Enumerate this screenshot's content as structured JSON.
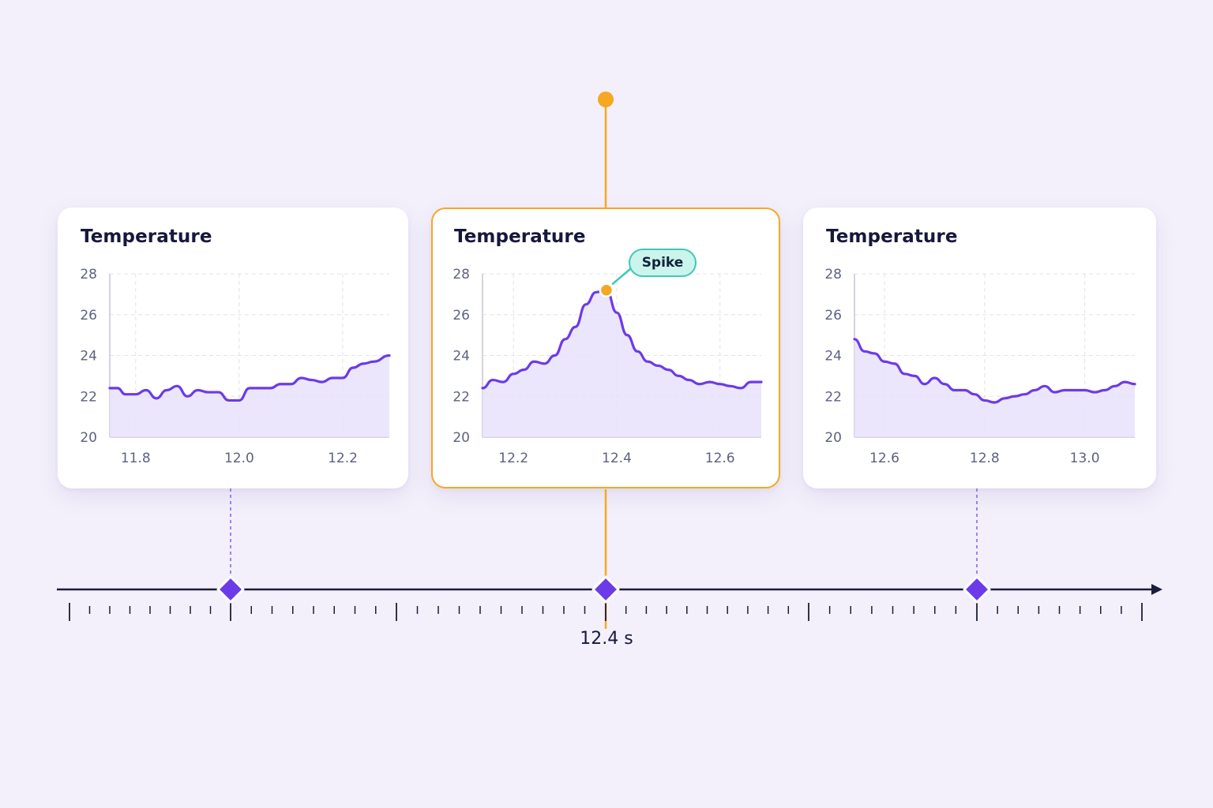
{
  "colors": {
    "background": "#f3f0fb",
    "line": "#6c3be8",
    "fill": "#e9e2fb",
    "highlight": "#f6a823",
    "marker": "#6c3be8",
    "callout_border": "#3ec9b6",
    "callout_fill": "#cbf4ec",
    "axis_text": "#5d6280",
    "timeline": "#1b1d3a"
  },
  "timeline": {
    "current_time_label": "12.4 s",
    "marker_icon": "diamond-marker"
  },
  "chart_data": [
    {
      "type": "area",
      "title": "Temperature",
      "xlabel": "",
      "ylabel": "",
      "ylim": [
        20,
        28
      ],
      "xlim": [
        11.75,
        12.29
      ],
      "yticks": [
        20,
        22,
        24,
        26,
        28
      ],
      "xticks": [
        11.8,
        12.0,
        12.2
      ],
      "xtick_labels": [
        "11.8",
        "12.0",
        "12.2"
      ],
      "grid": true,
      "series": [
        {
          "x": [
            11.75,
            11.765,
            11.78,
            11.8,
            11.82,
            11.84,
            11.86,
            11.88,
            11.9,
            11.92,
            11.94,
            11.96,
            11.98,
            12.0,
            12.02,
            12.04,
            12.06,
            12.08,
            12.1,
            12.12,
            12.14,
            12.16,
            12.18,
            12.2,
            12.22,
            12.24,
            12.26,
            12.29
          ],
          "y": [
            22.4,
            22.4,
            22.1,
            22.1,
            22.3,
            21.9,
            22.3,
            22.5,
            22.0,
            22.3,
            22.2,
            22.2,
            21.8,
            21.8,
            22.4,
            22.4,
            22.4,
            22.6,
            22.6,
            22.9,
            22.8,
            22.7,
            22.9,
            22.9,
            23.4,
            23.6,
            23.7,
            24.0
          ]
        }
      ]
    },
    {
      "type": "area",
      "title": "Temperature",
      "xlabel": "",
      "ylabel": "",
      "ylim": [
        20,
        28
      ],
      "xlim": [
        12.14,
        12.68
      ],
      "yticks": [
        20,
        22,
        24,
        26,
        28
      ],
      "xticks": [
        12.2,
        12.4,
        12.6
      ],
      "xtick_labels": [
        "12.2",
        "12.4",
        "12.6"
      ],
      "grid": true,
      "highlight_point": {
        "x": 12.38,
        "y": 27.2
      },
      "annotation": "Spike",
      "series": [
        {
          "x": [
            12.14,
            12.16,
            12.18,
            12.2,
            12.22,
            12.24,
            12.26,
            12.28,
            12.3,
            12.32,
            12.34,
            12.36,
            12.38,
            12.4,
            12.42,
            12.44,
            12.46,
            12.48,
            12.5,
            12.52,
            12.54,
            12.56,
            12.58,
            12.6,
            12.62,
            12.64,
            12.66,
            12.68
          ],
          "y": [
            22.4,
            22.8,
            22.7,
            23.1,
            23.3,
            23.7,
            23.6,
            24.0,
            24.8,
            25.4,
            26.5,
            27.1,
            27.2,
            26.1,
            25.0,
            24.2,
            23.7,
            23.5,
            23.3,
            23.0,
            22.8,
            22.6,
            22.7,
            22.6,
            22.5,
            22.4,
            22.7,
            22.7
          ]
        }
      ]
    },
    {
      "type": "area",
      "title": "Temperature",
      "xlabel": "",
      "ylabel": "",
      "ylim": [
        20,
        28
      ],
      "xlim": [
        12.54,
        13.1
      ],
      "yticks": [
        20,
        22,
        24,
        26,
        28
      ],
      "xticks": [
        12.6,
        12.8,
        13.0
      ],
      "xtick_labels": [
        "12.6",
        "12.8",
        "13.0"
      ],
      "grid": true,
      "series": [
        {
          "x": [
            12.54,
            12.56,
            12.58,
            12.6,
            12.62,
            12.64,
            12.66,
            12.68,
            12.7,
            12.72,
            12.74,
            12.76,
            12.78,
            12.8,
            12.82,
            12.84,
            12.86,
            12.88,
            12.9,
            12.92,
            12.94,
            12.96,
            12.98,
            13.0,
            13.02,
            13.04,
            13.06,
            13.08,
            13.1
          ],
          "y": [
            24.8,
            24.2,
            24.1,
            23.7,
            23.6,
            23.1,
            23.0,
            22.6,
            22.9,
            22.6,
            22.3,
            22.3,
            22.1,
            21.8,
            21.7,
            21.9,
            22.0,
            22.1,
            22.3,
            22.5,
            22.2,
            22.3,
            22.3,
            22.3,
            22.2,
            22.3,
            22.5,
            22.7,
            22.6
          ]
        }
      ]
    }
  ]
}
